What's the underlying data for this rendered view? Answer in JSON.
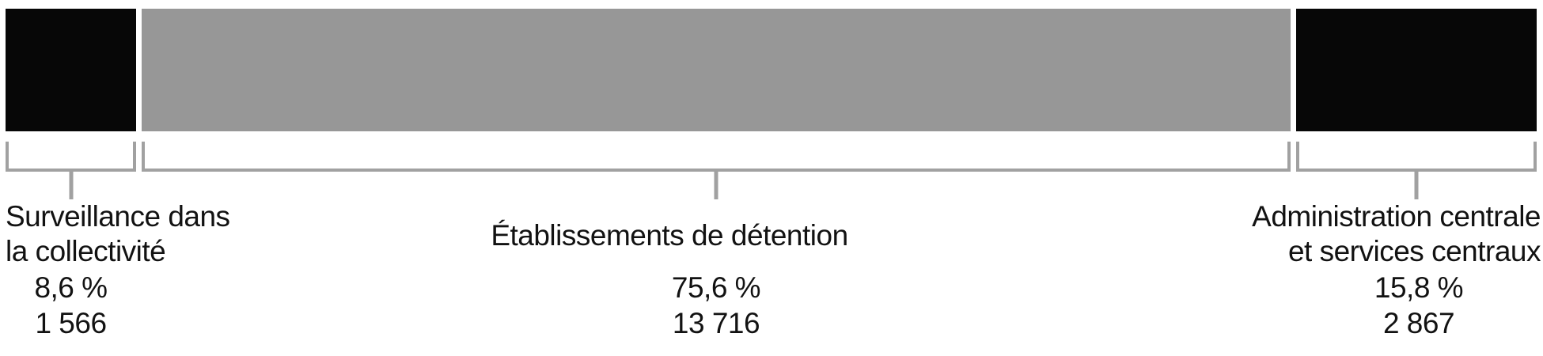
{
  "chart_data": {
    "type": "bar",
    "subtype": "horizontal-stacked-proportional",
    "title": "",
    "xlabel": "",
    "ylabel": "",
    "axes_visible": false,
    "legend": "none",
    "categories": [
      "Surveillance dans la collectivité",
      "Établissements de détention",
      "Administration centrale et services centraux"
    ],
    "percent_values": [
      8.6,
      75.6,
      15.8
    ],
    "count_values": [
      1566,
      13716,
      2867
    ],
    "segments": [
      {
        "label_lines": [
          "Surveillance dans",
          "la collectivité"
        ],
        "percent_label": "8,6 %",
        "value_label": "1 566",
        "percent": 8.6,
        "value": 1566,
        "color": "#070707"
      },
      {
        "label_lines": [
          "Établissements de détention"
        ],
        "percent_label": "75,6 %",
        "value_label": "13 716",
        "percent": 75.6,
        "value": 13716,
        "color": "#979797"
      },
      {
        "label_lines": [
          "Administration centrale",
          "et services centraux"
        ],
        "percent_label": "15,8 %",
        "value_label": "2 867",
        "percent": 15.8,
        "value": 2867,
        "color": "#070707"
      }
    ],
    "colors": {
      "segment_dark": "#070707",
      "segment_gray": "#979797",
      "bracket": "#a1a1a1",
      "text": "#121212",
      "background": "#ffffff"
    }
  }
}
